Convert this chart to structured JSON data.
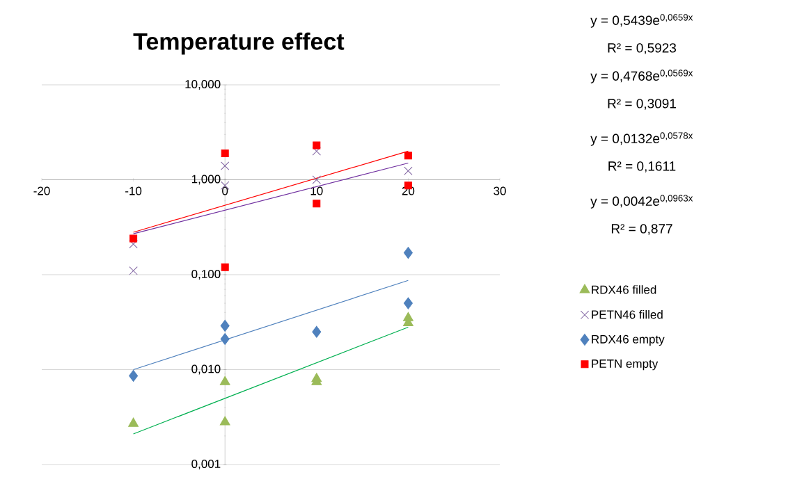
{
  "chart_data": {
    "type": "scatter",
    "title": "Temperature effect",
    "xlim": [
      -20,
      30
    ],
    "xticks": [
      -20,
      -10,
      0,
      10,
      20,
      30
    ],
    "ylim": [
      0.001,
      10
    ],
    "log": "y",
    "yticks": [
      {
        "value": 0.001,
        "label": "0,001"
      },
      {
        "value": 0.01,
        "label": "0,010"
      },
      {
        "value": 0.1,
        "label": "0,100"
      },
      {
        "value": 1,
        "label": "1,000"
      },
      {
        "value": 10,
        "label": "10,000"
      }
    ],
    "grid": "y",
    "legend": "right",
    "series": [
      {
        "name": "RDX46 filled",
        "marker": "triangle",
        "color": "#9bbb59",
        "x": [
          -10,
          0,
          0,
          10,
          10,
          20,
          20
        ],
        "values": [
          0.0027,
          0.0074,
          0.0028,
          0.008,
          0.0074,
          0.035,
          0.031
        ]
      },
      {
        "name": "PETN46 filled",
        "marker": "cross",
        "color": "#8064a2",
        "x": [
          -10,
          -10,
          0,
          0,
          10,
          10,
          20
        ],
        "values": [
          0.21,
          0.11,
          1.4,
          0.87,
          2.0,
          1.0,
          1.24
        ]
      },
      {
        "name": "RDX46 empty",
        "marker": "diamond",
        "color": "#4f81bd",
        "x": [
          -10,
          0,
          0,
          10,
          20,
          20
        ],
        "values": [
          0.0086,
          0.029,
          0.021,
          0.025,
          0.05,
          0.17
        ]
      },
      {
        "name": "PETN empty",
        "marker": "square",
        "color": "#ff0000",
        "x": [
          -10,
          0,
          0,
          10,
          10,
          20,
          20
        ],
        "values": [
          0.24,
          1.9,
          0.12,
          2.3,
          0.56,
          1.8,
          0.87
        ]
      },
      {
        "type": "line",
        "marker": "none",
        "line_style": "solid",
        "color": "#ff0000",
        "x": [
          -10,
          20
        ],
        "values": [
          0.28,
          2.0
        ]
      },
      {
        "type": "line",
        "marker": "none",
        "line_style": "solid",
        "color": "#7030a0",
        "x": [
          -10,
          20
        ],
        "values": [
          0.27,
          1.5
        ]
      },
      {
        "type": "line",
        "marker": "none",
        "line_style": "solid",
        "color": "#4f81bd",
        "x": [
          -10,
          20
        ],
        "values": [
          0.01,
          0.087
        ]
      },
      {
        "type": "line",
        "marker": "none",
        "line_style": "solid",
        "color": "#00b050",
        "x": [
          -10,
          20
        ],
        "values": [
          0.0021,
          0.028
        ]
      }
    ],
    "annotations": [
      "y = 0,5439e$^{0,0659x}$",
      "R² = 0,5923",
      "y = 0,4768e$^{0,0569x}$",
      "R² = 0,3091",
      "y = 0,0132e$^{0,0578x}$",
      "R² = 0,1611",
      "y = 0,0042e$^{0,0963x}$",
      "R² = 0,877"
    ]
  }
}
